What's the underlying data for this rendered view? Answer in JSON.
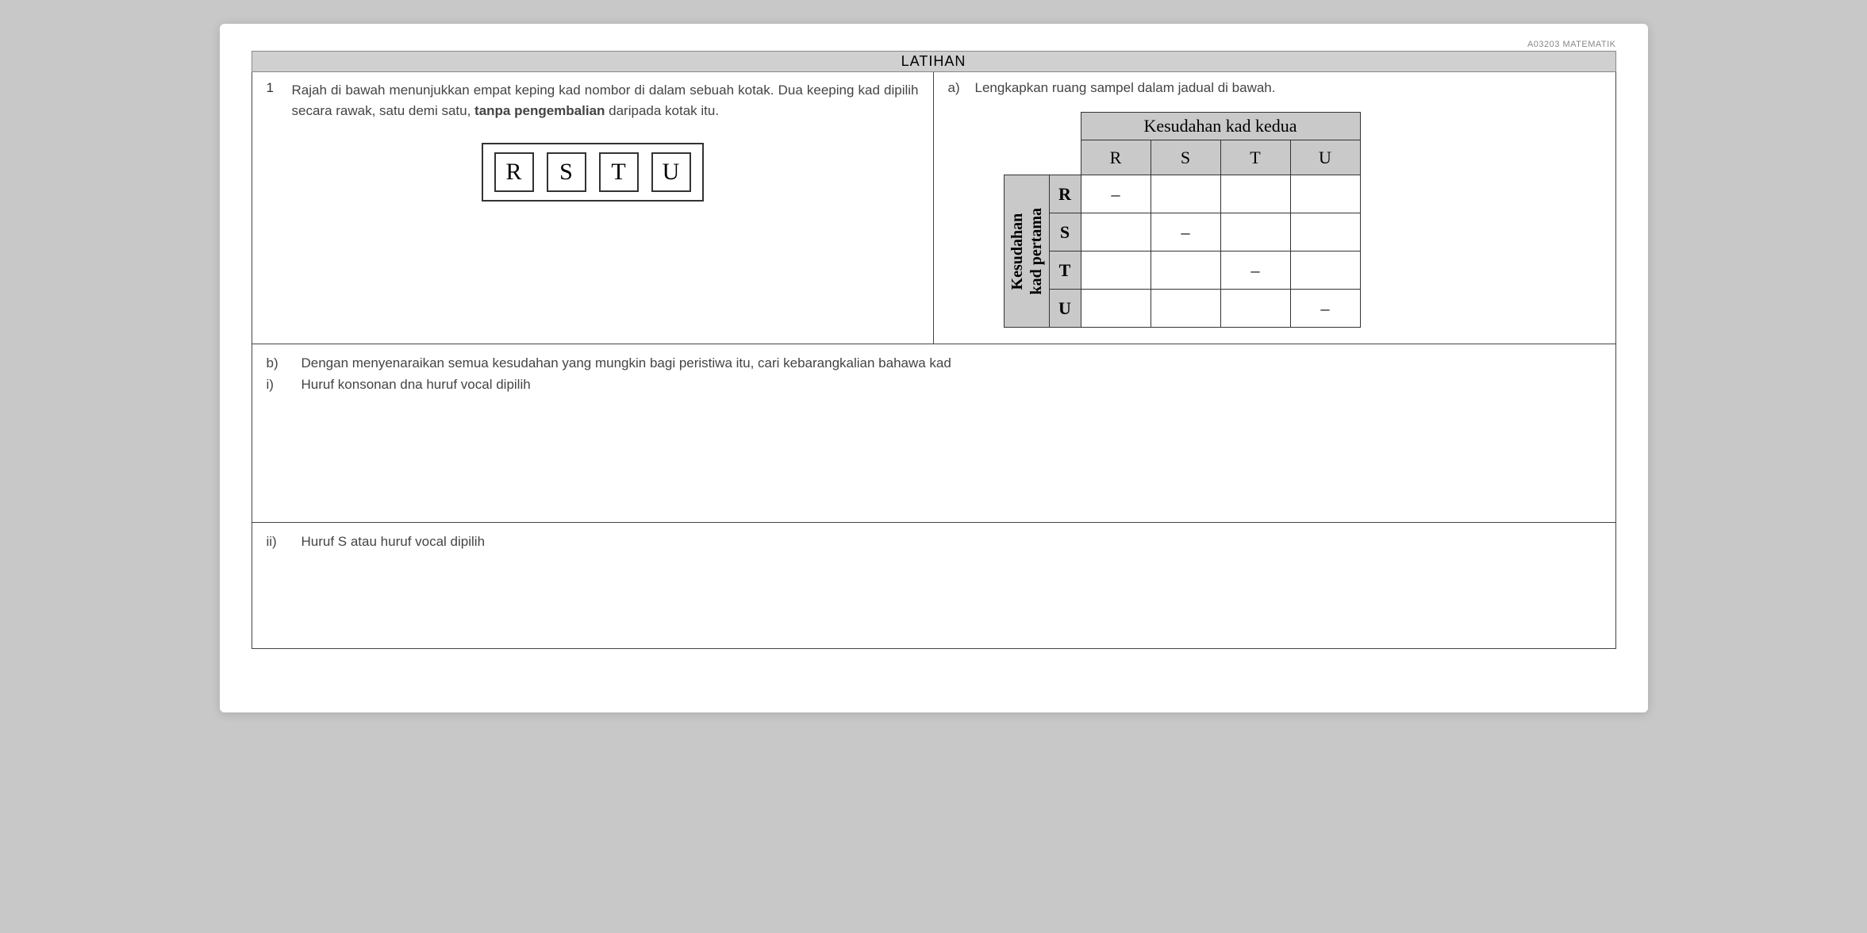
{
  "header_code": "A03203 MATEMATIK",
  "title": "LATIHAN",
  "question": {
    "number": "1",
    "text_part1": "Rajah di bawah menunjukkan empat keping kad nombor di dalam sebuah kotak. Dua keeping kad dipilih secara rawak, satu demi satu, ",
    "text_bold": "tanpa pengembalian",
    "text_part2": " daripada kotak itu.",
    "cards": [
      "R",
      "S",
      "T",
      "U"
    ]
  },
  "part_a": {
    "label": "a)",
    "text": "Lengkapkan ruang sampel dalam jadual di bawah.",
    "col_header": "Kesudahan kad kedua",
    "row_header_line1": "Kesudahan",
    "row_header_line2": "kad pertama",
    "cols": [
      "R",
      "S",
      "T",
      "U"
    ],
    "rows": [
      "R",
      "S",
      "T",
      "U"
    ],
    "cells": [
      [
        "–",
        "",
        "",
        ""
      ],
      [
        "",
        "–",
        "",
        ""
      ],
      [
        "",
        "",
        "–",
        ""
      ],
      [
        "",
        "",
        "",
        "–"
      ]
    ]
  },
  "part_b": {
    "label": "b)",
    "text": "Dengan menyenaraikan semua kesudahan yang mungkin bagi peristiwa itu, cari kebarangkalian bahawa kad",
    "i_label": "i)",
    "i_text": "Huruf konsonan dna huruf vocal dipilih",
    "ii_label": "ii)",
    "ii_text": "Huruf S atau huruf vocal dipilih"
  },
  "colors": {
    "page_bg": "#ffffff",
    "outer_bg": "#c8c8c8",
    "header_fill": "#c9c9c9",
    "border": "#333333",
    "text": "#444444"
  }
}
